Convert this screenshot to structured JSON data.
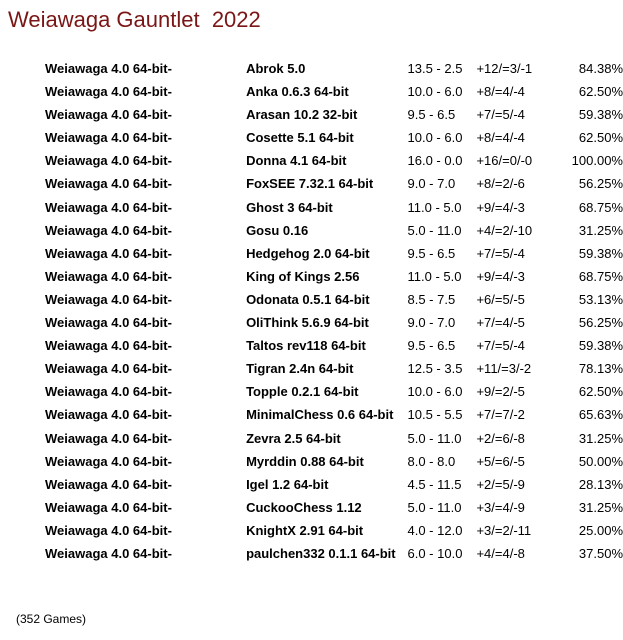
{
  "title": "Weiawaga Gauntlet  2022",
  "rows": [
    {
      "engine": "Weiawaga 4.0 64-bit-",
      "opponent": "Abrok 5.0",
      "score": "13.5 - 2.5",
      "wdl": "+12/=3/-1",
      "pct": "84.38%"
    },
    {
      "engine": "Weiawaga 4.0 64-bit-",
      "opponent": "Anka 0.6.3 64-bit",
      "score": "10.0 - 6.0",
      "wdl": "+8/=4/-4",
      "pct": "62.50%"
    },
    {
      "engine": "Weiawaga 4.0 64-bit-",
      "opponent": "Arasan 10.2 32-bit",
      "score": "9.5 - 6.5",
      "wdl": "+7/=5/-4",
      "pct": "59.38%"
    },
    {
      "engine": "Weiawaga 4.0 64-bit-",
      "opponent": "Cosette 5.1 64-bit",
      "score": "10.0 - 6.0",
      "wdl": "+8/=4/-4",
      "pct": "62.50%"
    },
    {
      "engine": "Weiawaga 4.0 64-bit-",
      "opponent": "Donna 4.1 64-bit",
      "score": "16.0 - 0.0",
      "wdl": "+16/=0/-0",
      "pct": "100.00%"
    },
    {
      "engine": "Weiawaga 4.0 64-bit-",
      "opponent": "FoxSEE 7.32.1 64-bit",
      "score": "9.0 - 7.0",
      "wdl": "+8/=2/-6",
      "pct": "56.25%"
    },
    {
      "engine": "Weiawaga 4.0 64-bit-",
      "opponent": "Ghost 3 64-bit",
      "score": "11.0 - 5.0",
      "wdl": "+9/=4/-3",
      "pct": "68.75%"
    },
    {
      "engine": "Weiawaga 4.0 64-bit-",
      "opponent": "Gosu 0.16",
      "score": "5.0 - 11.0",
      "wdl": "+4/=2/-10",
      "pct": "31.25%"
    },
    {
      "engine": "Weiawaga 4.0 64-bit-",
      "opponent": "Hedgehog 2.0 64-bit",
      "score": "9.5 - 6.5",
      "wdl": "+7/=5/-4",
      "pct": "59.38%"
    },
    {
      "engine": "Weiawaga 4.0 64-bit-",
      "opponent": "King of Kings 2.56",
      "score": "11.0 - 5.0",
      "wdl": "+9/=4/-3",
      "pct": "68.75%"
    },
    {
      "engine": "Weiawaga 4.0 64-bit-",
      "opponent": "Odonata 0.5.1 64-bit",
      "score": "8.5 - 7.5",
      "wdl": "+6/=5/-5",
      "pct": "53.13%"
    },
    {
      "engine": "Weiawaga 4.0 64-bit-",
      "opponent": "OliThink 5.6.9 64-bit",
      "score": "9.0 - 7.0",
      "wdl": "+7/=4/-5",
      "pct": "56.25%"
    },
    {
      "engine": "Weiawaga 4.0 64-bit-",
      "opponent": "Taltos rev118 64-bit",
      "score": "9.5 - 6.5",
      "wdl": "+7/=5/-4",
      "pct": "59.38%"
    },
    {
      "engine": "Weiawaga 4.0 64-bit-",
      "opponent": "Tigran 2.4n 64-bit",
      "score": "12.5 - 3.5",
      "wdl": "+11/=3/-2",
      "pct": "78.13%"
    },
    {
      "engine": "Weiawaga 4.0 64-bit-",
      "opponent": "Topple 0.2.1 64-bit",
      "score": "10.0 - 6.0",
      "wdl": "+9/=2/-5",
      "pct": "62.50%"
    },
    {
      "engine": "Weiawaga 4.0 64-bit-",
      "opponent": "MinimalChess 0.6 64-bit",
      "score": "10.5 - 5.5",
      "wdl": "+7/=7/-2",
      "pct": "65.63%"
    },
    {
      "engine": "Weiawaga 4.0 64-bit-",
      "opponent": "Zevra 2.5 64-bit",
      "score": "5.0 - 11.0",
      "wdl": "+2/=6/-8",
      "pct": "31.25%"
    },
    {
      "engine": "Weiawaga 4.0 64-bit-",
      "opponent": "Myrddin 0.88 64-bit",
      "score": "8.0 - 8.0",
      "wdl": "+5/=6/-5",
      "pct": "50.00%"
    },
    {
      "engine": "Weiawaga 4.0 64-bit-",
      "opponent": "Igel 1.2 64-bit",
      "score": "4.5 - 11.5",
      "wdl": "+2/=5/-9",
      "pct": "28.13%"
    },
    {
      "engine": "Weiawaga 4.0 64-bit-",
      "opponent": "CuckooChess 1.12",
      "score": "5.0 - 11.0",
      "wdl": "+3/=4/-9",
      "pct": "31.25%"
    },
    {
      "engine": "Weiawaga 4.0 64-bit-",
      "opponent": "KnightX 2.91 64-bit",
      "score": "4.0 - 12.0",
      "wdl": "+3/=2/-11",
      "pct": "25.00%"
    },
    {
      "engine": "Weiawaga 4.0 64-bit-",
      "opponent": "paulchen332 0.1.1 64-bit",
      "score": "6.0 - 10.0",
      "wdl": "+4/=4/-8",
      "pct": "37.50%"
    }
  ],
  "footer": "(352 Games)",
  "colors": {
    "title": "#7a1616",
    "text": "#000000",
    "background": "#ffffff"
  }
}
